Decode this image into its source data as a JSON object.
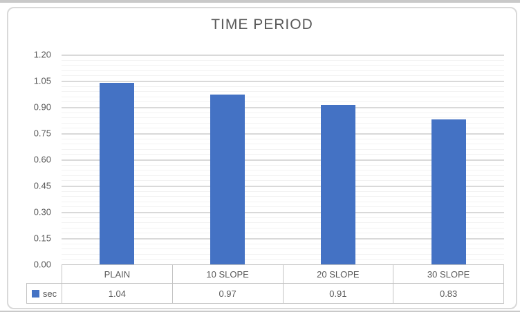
{
  "chart_data": {
    "type": "bar",
    "title": "TIME PERIOD",
    "categories": [
      "PLAIN",
      "10 SLOPE",
      "20 SLOPE",
      "30 SLOPE"
    ],
    "series": [
      {
        "name": "sec",
        "values": [
          1.04,
          0.97,
          0.91,
          0.83
        ]
      }
    ],
    "value_labels": [
      "1.04",
      "0.97",
      "0.91",
      "0.83"
    ],
    "xlabel": "",
    "ylabel": "",
    "ylim": [
      0,
      1.2
    ],
    "y_major_tick": 0.15,
    "y_minor_tick": 0.03,
    "y_tick_labels": [
      "1.20",
      "1.05",
      "0.90",
      "0.75",
      "0.60",
      "0.45",
      "0.30",
      "0.15",
      "0.00"
    ],
    "grid": true,
    "legend_position": "data-table-left",
    "data_table_shown": true,
    "colors": {
      "bar": "#4472c4",
      "title_text": "#595959",
      "axis_text": "#595959",
      "major_gridline": "#d9d9d9",
      "minor_gridline": "#f2f2f2",
      "table_border": "#c3c3c3",
      "chart_border": "#d9d9d9",
      "background": "#ffffff"
    }
  }
}
